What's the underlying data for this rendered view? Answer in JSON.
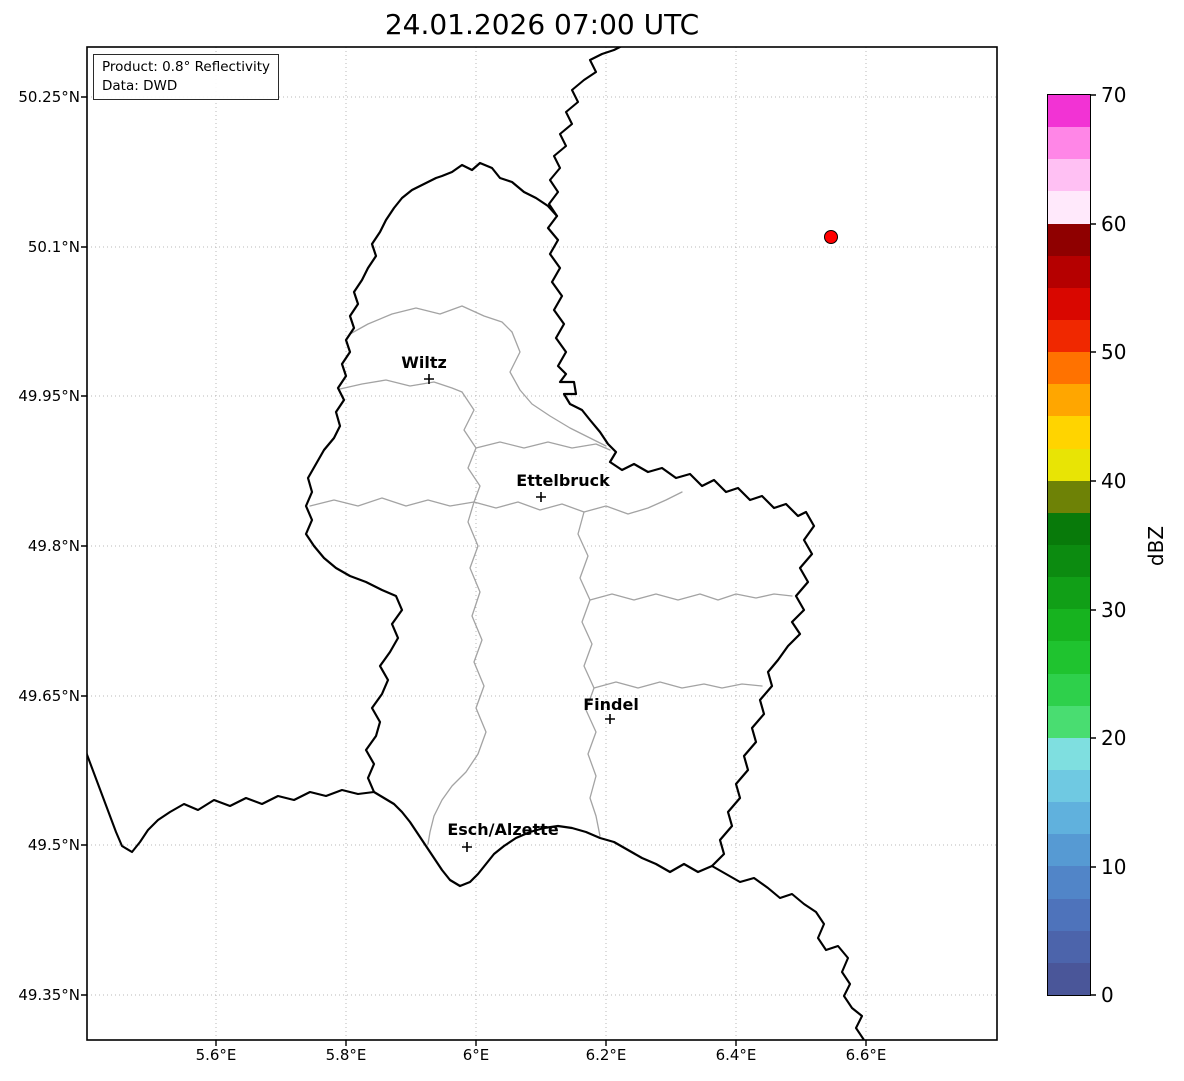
{
  "title": "24.01.2026 07:00 UTC",
  "info_box": {
    "product": "Product: 0.8° Reflectivity",
    "data_source": "Data: DWD"
  },
  "axes": {
    "x_ticks": [
      "5.6°E",
      "5.8°E",
      "6°E",
      "6.2°E",
      "6.4°E",
      "6.6°E"
    ],
    "y_ticks": [
      "50.25°N",
      "50.1°N",
      "49.95°N",
      "49.8°N",
      "49.65°N",
      "49.5°N",
      "49.35°N"
    ]
  },
  "cities": [
    {
      "name": "Wiltz"
    },
    {
      "name": "Ettelbruck"
    },
    {
      "name": "Findel"
    },
    {
      "name": "Esch/Alzette"
    }
  ],
  "radar_marker": {
    "color": "#ff0000"
  },
  "colorbar": {
    "label": "dBZ",
    "tick_labels": [
      "70",
      "60",
      "50",
      "40",
      "30",
      "20",
      "10",
      "0"
    ],
    "value_min": 0,
    "value_max": 70,
    "step": 2.5,
    "colors_bottom_to_top": [
      "#4a5699",
      "#4c64ab",
      "#4e73bb",
      "#5185c8",
      "#569ad3",
      "#60b1dd",
      "#6fc9e2",
      "#7fdfe0",
      "#49dd71",
      "#2ed04b",
      "#1fc32f",
      "#17b31f",
      "#119f17",
      "#0c8b10",
      "#087a0a",
      "#6e8206",
      "#e8e405",
      "#ffd400",
      "#ffa600",
      "#ff7200",
      "#f02800",
      "#d90700",
      "#b50000",
      "#8f0000",
      "#ffe9fb",
      "#ffc0f3",
      "#ff86e7",
      "#f233d4"
    ]
  }
}
